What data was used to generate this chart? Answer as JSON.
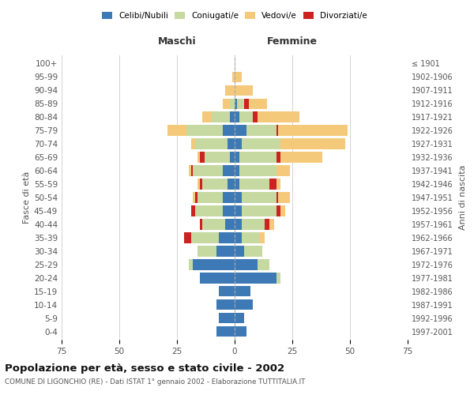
{
  "age_groups": [
    "0-4",
    "5-9",
    "10-14",
    "15-19",
    "20-24",
    "25-29",
    "30-34",
    "35-39",
    "40-44",
    "45-49",
    "50-54",
    "55-59",
    "60-64",
    "65-69",
    "70-74",
    "75-79",
    "80-84",
    "85-89",
    "90-94",
    "95-99",
    "100+"
  ],
  "birth_years": [
    "1997-2001",
    "1992-1996",
    "1987-1991",
    "1982-1986",
    "1977-1981",
    "1972-1976",
    "1967-1971",
    "1962-1966",
    "1957-1961",
    "1952-1956",
    "1947-1951",
    "1942-1946",
    "1937-1941",
    "1932-1936",
    "1927-1931",
    "1922-1926",
    "1917-1921",
    "1912-1916",
    "1907-1911",
    "1902-1906",
    "≤ 1901"
  ],
  "colors": {
    "celibi": "#3d7ab5",
    "coniugati": "#c5d9a0",
    "vedovi": "#f5c97a",
    "divorziati": "#cc2222"
  },
  "males": {
    "celibi": [
      8,
      7,
      8,
      7,
      15,
      18,
      8,
      7,
      4,
      5,
      5,
      3,
      5,
      2,
      3,
      5,
      2,
      0,
      0,
      0,
      0
    ],
    "coniugati": [
      0,
      0,
      0,
      0,
      0,
      2,
      8,
      12,
      10,
      12,
      11,
      11,
      13,
      11,
      14,
      16,
      8,
      2,
      0,
      0,
      0
    ],
    "vedovi": [
      0,
      0,
      0,
      0,
      0,
      0,
      0,
      0,
      0,
      0,
      1,
      1,
      1,
      1,
      2,
      8,
      4,
      3,
      4,
      1,
      0
    ],
    "divorziati": [
      0,
      0,
      0,
      0,
      0,
      0,
      0,
      3,
      1,
      2,
      1,
      1,
      1,
      2,
      0,
      0,
      0,
      0,
      0,
      0,
      0
    ]
  },
  "females": {
    "celibi": [
      5,
      4,
      8,
      7,
      18,
      10,
      4,
      3,
      3,
      3,
      3,
      2,
      2,
      2,
      3,
      5,
      2,
      1,
      0,
      0,
      0
    ],
    "coniugati": [
      0,
      0,
      0,
      0,
      2,
      5,
      8,
      8,
      10,
      15,
      15,
      13,
      16,
      16,
      17,
      13,
      6,
      3,
      0,
      0,
      0
    ],
    "vedovi": [
      0,
      0,
      0,
      0,
      0,
      0,
      0,
      2,
      2,
      2,
      5,
      2,
      6,
      18,
      28,
      30,
      18,
      8,
      8,
      3,
      0
    ],
    "divorziati": [
      0,
      0,
      0,
      0,
      0,
      0,
      0,
      0,
      2,
      2,
      1,
      3,
      0,
      2,
      0,
      1,
      2,
      2,
      0,
      0,
      0
    ]
  },
  "title": "Popolazione per età, sesso e stato civile - 2002",
  "subtitle": "COMUNE DI LIGONCHIO (RE) - Dati ISTAT 1° gennaio 2002 - Elaborazione TUTTITALIA.IT",
  "ylabel_left": "Fasce di età",
  "ylabel_right": "Anni di nascita",
  "xlabel_left": "Maschi",
  "xlabel_right": "Femmine",
  "xlim": 75,
  "legend_labels": [
    "Celibi/Nubili",
    "Coniugati/e",
    "Vedovi/e",
    "Divorziati/e"
  ],
  "background_color": "#ffffff",
  "grid_color": "#cccccc"
}
